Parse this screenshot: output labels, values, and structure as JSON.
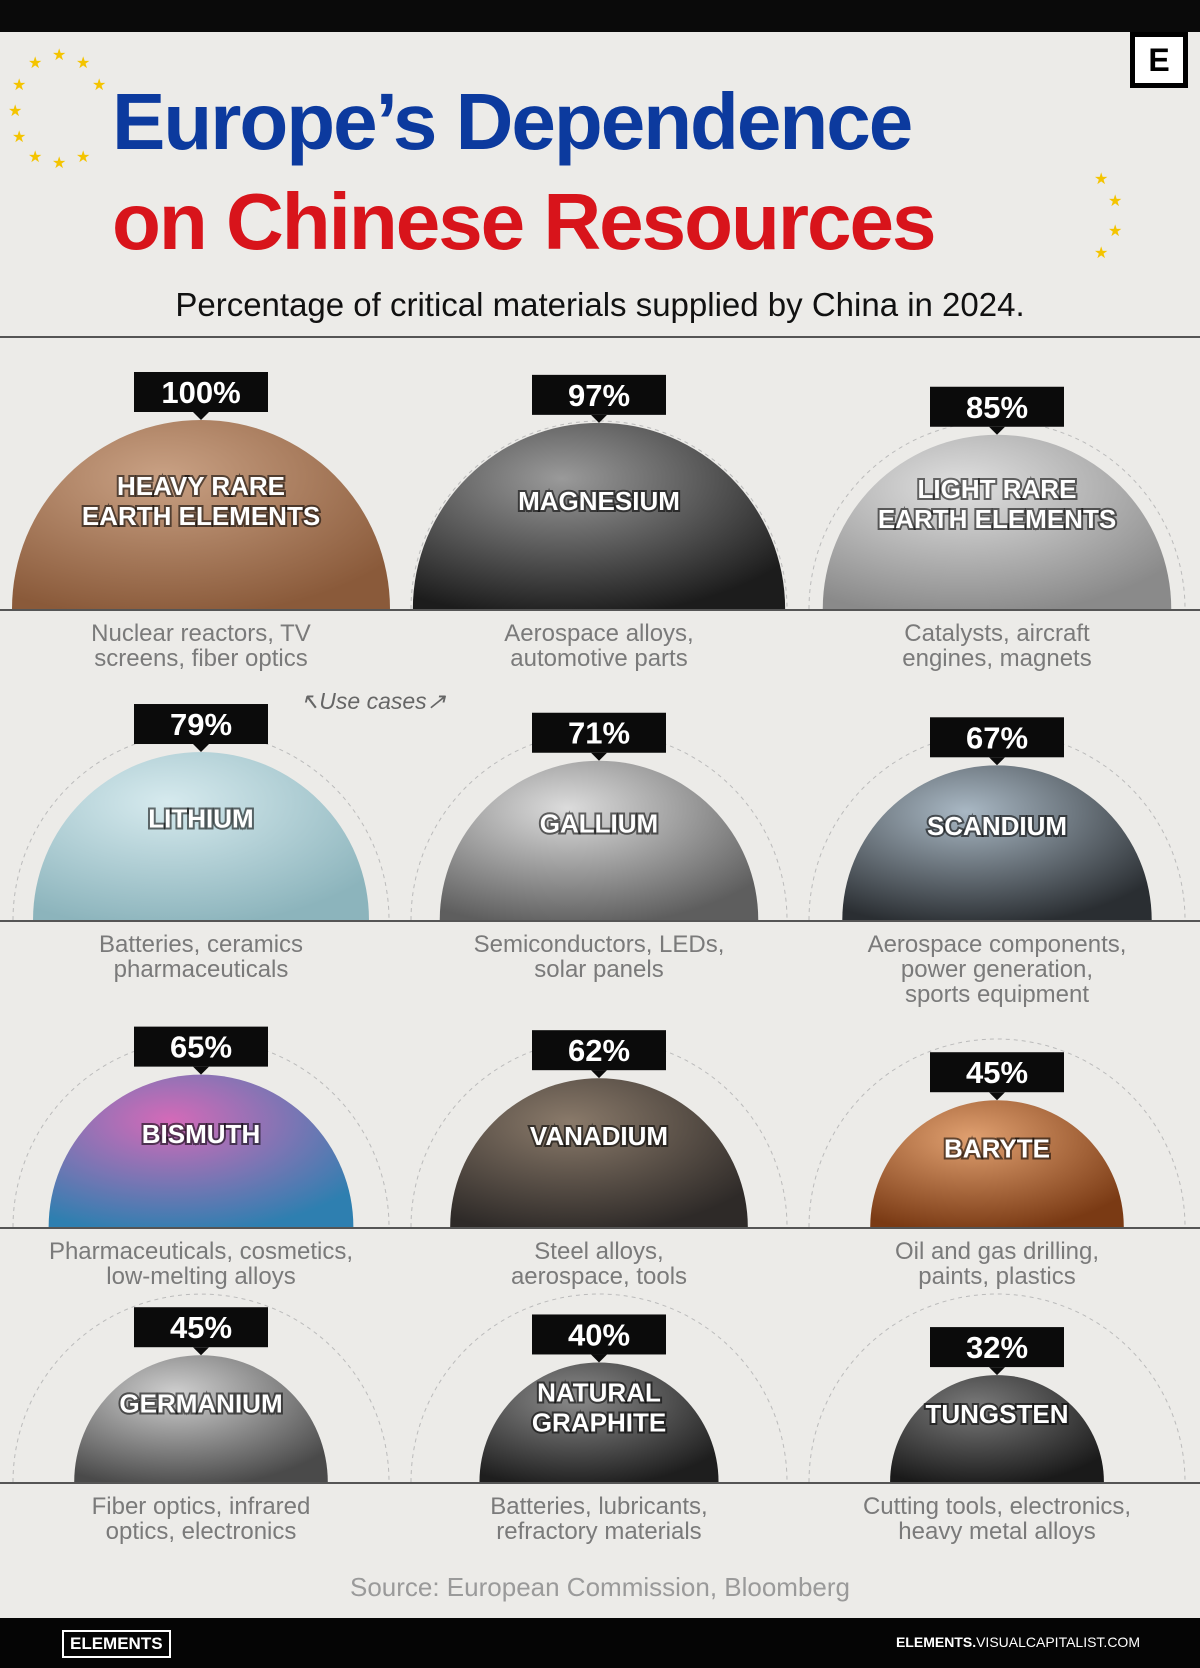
{
  "header": {
    "title_line1": "Europe’s Dependence",
    "title_line2": "on Chinese Resources",
    "subtitle": "Percentage of critical materials supplied by China in 2024.",
    "logo": "E"
  },
  "annotation": "Use cases",
  "source": "Source: European Commission, Bloomberg",
  "footer": {
    "brand": "ELEMENTS",
    "url_bold": "ELEMENTS.",
    "url_rest": "VISUALCAPITALIST.COM"
  },
  "colors": {
    "title_blue": "#0c3a9e",
    "title_red": "#d8141b",
    "star": "#f4c400"
  },
  "chart_data": {
    "type": "bubble-grid",
    "title": "Europe’s Dependence on Chinese Resources",
    "subtitle": "Percentage of critical materials supplied by China in 2024.",
    "unit": "%",
    "items": [
      {
        "name": "HEAVY RARE EARTH ELEMENTS",
        "lines": [
          "HEAVY RARE",
          "EARTH ELEMENTS"
        ],
        "value": 100,
        "label": "100%",
        "use_cases": [
          "Nuclear reactors, TV",
          "screens, fiber optics"
        ],
        "color": [
          "#c9a184",
          "#8a5a3a"
        ]
      },
      {
        "name": "MAGNESIUM",
        "lines": [
          "MAGNESIUM"
        ],
        "value": 97,
        "label": "97%",
        "use_cases": [
          "Aerospace alloys,",
          "automotive parts"
        ],
        "color": [
          "#9a9a9a",
          "#1c1c1c"
        ]
      },
      {
        "name": "LIGHT RARE EARTH ELEMENTS",
        "lines": [
          "LIGHT RARE",
          "EARTH ELEMENTS"
        ],
        "value": 85,
        "label": "85%",
        "use_cases": [
          "Catalysts, aircraft",
          "engines, magnets"
        ],
        "color": [
          "#e0e0e0",
          "#8a8a8a"
        ]
      },
      {
        "name": "LITHIUM",
        "lines": [
          "LITHIUM"
        ],
        "value": 79,
        "label": "79%",
        "use_cases": [
          "Batteries, ceramics",
          "pharmaceuticals"
        ],
        "color": [
          "#d6eaee",
          "#8cb4bc"
        ]
      },
      {
        "name": "GALLIUM",
        "lines": [
          "GALLIUM"
        ],
        "value": 71,
        "label": "71%",
        "use_cases": [
          "Semiconductors, LEDs,",
          "solar panels"
        ],
        "color": [
          "#dcdcdc",
          "#5e5e5e"
        ]
      },
      {
        "name": "SCANDIUM",
        "lines": [
          "SCANDIUM"
        ],
        "value": 67,
        "label": "67%",
        "use_cases": [
          "Aerospace components,",
          "power generation,",
          "sports equipment"
        ],
        "color": [
          "#a9b8c4",
          "#2a2e32"
        ]
      },
      {
        "name": "BISMUTH",
        "lines": [
          "BISMUTH"
        ],
        "value": 65,
        "label": "65%",
        "use_cases": [
          "Pharmaceuticals, cosmetics,",
          "low-melting alloys"
        ],
        "color": [
          "#d46ab8",
          "#2e7fb0"
        ]
      },
      {
        "name": "VANADIUM",
        "lines": [
          "VANADIUM"
        ],
        "value": 62,
        "label": "62%",
        "use_cases": [
          "Steel alloys,",
          "aerospace, tools"
        ],
        "color": [
          "#8a7a6a",
          "#2e2a28"
        ]
      },
      {
        "name": "BARYTE",
        "lines": [
          "BARYTE"
        ],
        "value": 45,
        "label": "45%",
        "use_cases": [
          "Oil and gas drilling,",
          "paints, plastics"
        ],
        "color": [
          "#e0a070",
          "#7a3a14"
        ]
      },
      {
        "name": "GERMANIUM",
        "lines": [
          "GERMANIUM"
        ],
        "value": 45,
        "label": "45%",
        "use_cases": [
          "Fiber optics, infrared",
          "optics, electronics"
        ],
        "color": [
          "#cfcfcf",
          "#4a4a4a"
        ]
      },
      {
        "name": "NATURAL GRAPHITE",
        "lines": [
          "NATURAL",
          "GRAPHITE"
        ],
        "value": 40,
        "label": "40%",
        "use_cases": [
          "Batteries, lubricants,",
          "refractory materials"
        ],
        "color": [
          "#8a8a8a",
          "#1e1e1e"
        ]
      },
      {
        "name": "TUNGSTEN",
        "lines": [
          "TUNGSTEN"
        ],
        "value": 32,
        "label": "32%",
        "use_cases": [
          "Cutting tools, electronics,",
          "heavy metal alloys"
        ],
        "color": [
          "#7a7a7a",
          "#1a1a1a"
        ]
      }
    ]
  }
}
